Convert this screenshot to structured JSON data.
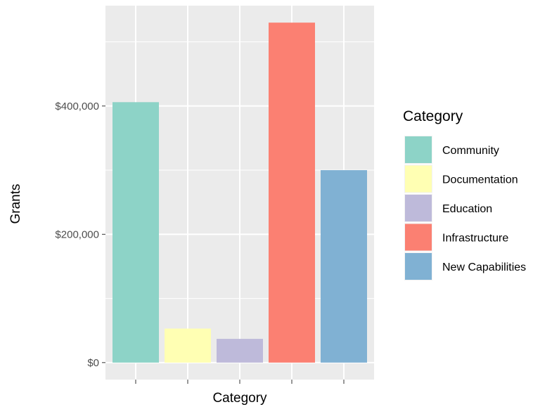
{
  "chart_data": {
    "type": "bar",
    "categories": [
      "Community",
      "Documentation",
      "Education",
      "Infrastructure",
      "New Capabilities"
    ],
    "values": [
      406000,
      53000,
      37000,
      530000,
      300000
    ],
    "colors": [
      "#8dd3c7",
      "#ffffb3",
      "#bebada",
      "#fb8072",
      "#80b1d3"
    ],
    "xlabel": "Category",
    "ylabel": "Grants",
    "ylim": [
      -26500,
      556500
    ],
    "yticks": [
      0,
      200000,
      400000
    ],
    "ytick_labels": [
      "$0",
      "$200,000",
      "$400,000"
    ],
    "x_tick_labels_shown": false,
    "grid": true,
    "panel_background": "#ebebeb",
    "legend": {
      "title": "Category",
      "position": "right",
      "items": [
        "Community",
        "Documentation",
        "Education",
        "Infrastructure",
        "New Capabilities"
      ]
    }
  }
}
